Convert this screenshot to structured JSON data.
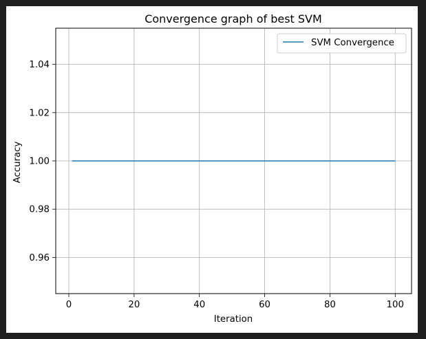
{
  "colors": {
    "background": "#1e1e1e",
    "figure": "#ffffff",
    "grid": "#b0b0b0",
    "series": "#1f77b4"
  },
  "chart_data": {
    "type": "line",
    "title": "Convergence graph of best SVM",
    "xlabel": "Iteration",
    "ylabel": "Accuracy",
    "xlim": [
      -4,
      105
    ],
    "ylim": [
      0.945,
      1.055
    ],
    "xticks": [
      0,
      20,
      40,
      60,
      80,
      100
    ],
    "xtick_labels": [
      "0",
      "20",
      "40",
      "60",
      "80",
      "100"
    ],
    "yticks": [
      0.96,
      0.98,
      1.0,
      1.02,
      1.04
    ],
    "ytick_labels": [
      "0.96",
      "0.98",
      "1.00",
      "1.02",
      "1.04"
    ],
    "grid": true,
    "legend": {
      "placement": "top-right",
      "entries": [
        "SVM Convergence"
      ]
    },
    "series": [
      {
        "name": "SVM Convergence",
        "color": "#1f77b4",
        "x": [
          1,
          100
        ],
        "y": [
          1.0,
          1.0
        ]
      }
    ]
  }
}
